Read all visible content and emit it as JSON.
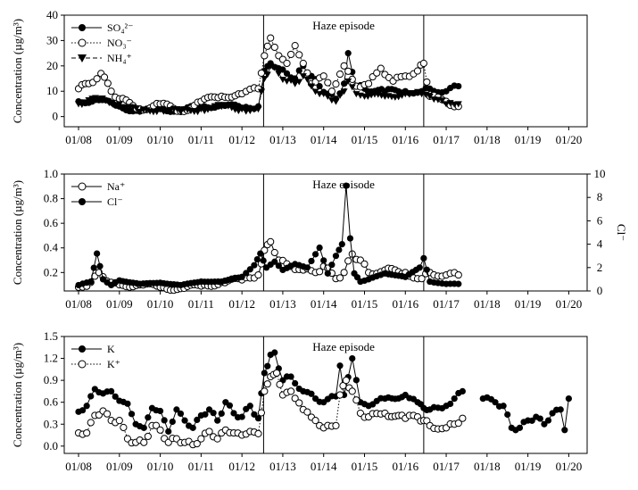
{
  "chart_data": [
    {
      "type": "line",
      "ylabel": "Concentration (µg/m³)",
      "ylim": [
        -4,
        40
      ],
      "yticks": [
        0,
        10,
        20,
        30,
        40
      ],
      "annotation": "Haze episode",
      "haze_bounds": [
        4.53,
        8.45
      ],
      "series": [
        {
          "name": "SO₄²⁻",
          "marker": "filled-circle",
          "line": "solid",
          "points": [
            [
              0.0,
              6
            ],
            [
              0.5,
              6.5
            ],
            [
              1.0,
              4
            ],
            [
              1.5,
              2
            ],
            [
              2.0,
              3
            ],
            [
              2.5,
              2.5
            ],
            [
              3.0,
              4
            ],
            [
              3.5,
              4.5
            ],
            [
              4.0,
              3.5
            ],
            [
              4.4,
              4
            ],
            [
              4.55,
              18
            ],
            [
              4.7,
              21
            ],
            [
              4.9,
              19
            ],
            [
              5.1,
              17
            ],
            [
              5.3,
              15
            ],
            [
              5.5,
              20
            ],
            [
              5.7,
              16
            ],
            [
              5.9,
              12
            ],
            [
              6.1,
              9
            ],
            [
              6.3,
              7
            ],
            [
              6.5,
              13
            ],
            [
              6.6,
              25
            ],
            [
              6.8,
              12
            ],
            [
              7.0,
              11
            ],
            [
              7.5,
              10
            ],
            [
              8.0,
              10
            ],
            [
              8.4,
              10
            ],
            [
              8.6,
              11
            ],
            [
              9.0,
              10
            ],
            [
              9.3,
              12
            ]
          ]
        },
        {
          "name": "NO₃⁻",
          "marker": "open-circle",
          "line": "dotted",
          "points": [
            [
              0.0,
              11
            ],
            [
              0.25,
              13
            ],
            [
              0.55,
              17
            ],
            [
              0.8,
              10
            ],
            [
              1.0,
              7
            ],
            [
              1.5,
              3
            ],
            [
              2.0,
              5
            ],
            [
              2.5,
              2
            ],
            [
              3.0,
              6
            ],
            [
              3.5,
              8
            ],
            [
              4.0,
              9
            ],
            [
              4.4,
              11
            ],
            [
              4.55,
              24
            ],
            [
              4.7,
              31
            ],
            [
              4.9,
              24
            ],
            [
              5.1,
              21
            ],
            [
              5.3,
              28
            ],
            [
              5.5,
              21
            ],
            [
              5.7,
              13
            ],
            [
              6.0,
              16
            ],
            [
              6.2,
              10
            ],
            [
              6.5,
              20
            ],
            [
              6.8,
              12
            ],
            [
              7.1,
              13
            ],
            [
              7.4,
              19
            ],
            [
              7.7,
              14
            ],
            [
              8.0,
              16
            ],
            [
              8.3,
              18
            ],
            [
              8.45,
              21
            ],
            [
              8.6,
              8
            ],
            [
              9.0,
              6
            ],
            [
              9.3,
              4
            ]
          ]
        },
        {
          "name": "NH₄⁺",
          "marker": "filled-triangle-down",
          "line": "dashed",
          "points": [
            [
              0.0,
              5
            ],
            [
              0.5,
              7
            ],
            [
              1.0,
              5
            ],
            [
              1.5,
              2
            ],
            [
              2.0,
              3
            ],
            [
              2.5,
              2
            ],
            [
              3.0,
              3
            ],
            [
              3.5,
              4
            ],
            [
              4.0,
              3
            ],
            [
              4.4,
              3
            ],
            [
              4.55,
              15
            ],
            [
              4.7,
              20
            ],
            [
              4.9,
              17
            ],
            [
              5.1,
              14
            ],
            [
              5.3,
              13
            ],
            [
              5.5,
              16
            ],
            [
              5.7,
              12
            ],
            [
              5.9,
              9
            ],
            [
              6.1,
              8
            ],
            [
              6.3,
              6
            ],
            [
              6.5,
              10
            ],
            [
              6.6,
              14
            ],
            [
              6.8,
              9
            ],
            [
              7.0,
              8
            ],
            [
              7.5,
              8
            ],
            [
              8.0,
              9
            ],
            [
              8.4,
              9
            ],
            [
              8.6,
              8
            ],
            [
              9.0,
              5
            ],
            [
              9.3,
              5
            ]
          ]
        }
      ]
    },
    {
      "type": "line",
      "ylabel": "Concentration (µg/m³)",
      "ylabel_right": "Cl⁻",
      "ylim": [
        0.05,
        1.0
      ],
      "yticks": [
        0.2,
        0.4,
        0.6,
        0.8,
        1.0
      ],
      "y2lim": [
        0,
        10
      ],
      "y2ticks": [
        0,
        2,
        4,
        6,
        8,
        10
      ],
      "annotation": "Haze episode",
      "haze_bounds": [
        4.53,
        8.45
      ],
      "series": [
        {
          "name": "Na⁺",
          "marker": "open-circle",
          "line": "solid",
          "axis": "left",
          "points": [
            [
              0.0,
              0.08
            ],
            [
              0.3,
              0.12
            ],
            [
              0.5,
              0.2
            ],
            [
              0.8,
              0.12
            ],
            [
              1.0,
              0.1
            ],
            [
              1.5,
              0.1
            ],
            [
              2.0,
              0.08
            ],
            [
              2.5,
              0.07
            ],
            [
              3.0,
              0.09
            ],
            [
              3.5,
              0.12
            ],
            [
              4.0,
              0.14
            ],
            [
              4.4,
              0.18
            ],
            [
              4.55,
              0.38
            ],
            [
              4.7,
              0.45
            ],
            [
              4.9,
              0.3
            ],
            [
              5.2,
              0.25
            ],
            [
              5.5,
              0.22
            ],
            [
              5.8,
              0.2
            ],
            [
              6.0,
              0.25
            ],
            [
              6.3,
              0.15
            ],
            [
              6.5,
              0.2
            ],
            [
              6.7,
              0.35
            ],
            [
              6.9,
              0.3
            ],
            [
              7.1,
              0.2
            ],
            [
              7.5,
              0.22
            ],
            [
              8.0,
              0.2
            ],
            [
              8.4,
              0.15
            ],
            [
              8.6,
              0.2
            ],
            [
              9.0,
              0.18
            ],
            [
              9.3,
              0.18
            ]
          ]
        },
        {
          "name": "Cl⁻",
          "marker": "filled-circle",
          "line": "solid",
          "axis": "right",
          "points": [
            [
              0.0,
              0.5
            ],
            [
              0.3,
              0.8
            ],
            [
              0.45,
              3.2
            ],
            [
              0.6,
              1
            ],
            [
              0.8,
              0.5
            ],
            [
              1.0,
              0.9
            ],
            [
              1.5,
              0.6
            ],
            [
              2.0,
              0.7
            ],
            [
              2.5,
              0.5
            ],
            [
              3.0,
              0.8
            ],
            [
              3.5,
              0.8
            ],
            [
              4.0,
              1.2
            ],
            [
              4.3,
              2.2
            ],
            [
              4.45,
              3.2
            ],
            [
              4.6,
              2
            ],
            [
              4.8,
              2.5
            ],
            [
              5.0,
              1.8
            ],
            [
              5.3,
              2.3
            ],
            [
              5.6,
              2
            ],
            [
              5.9,
              3.7
            ],
            [
              6.1,
              1.5
            ],
            [
              6.3,
              3
            ],
            [
              6.45,
              4
            ],
            [
              6.55,
              9
            ],
            [
              6.65,
              4.5
            ],
            [
              6.75,
              1.5
            ],
            [
              6.9,
              0.8
            ],
            [
              7.1,
              1
            ],
            [
              7.5,
              1.5
            ],
            [
              8.0,
              1.2
            ],
            [
              8.35,
              2
            ],
            [
              8.45,
              2.8
            ],
            [
              8.6,
              0.8
            ],
            [
              9.0,
              0.6
            ],
            [
              9.3,
              0.6
            ]
          ]
        }
      ]
    },
    {
      "type": "line",
      "ylabel": "Concentration (µg/m³)",
      "ylim": [
        -0.1,
        1.5
      ],
      "yticks": [
        0.0,
        0.3,
        0.6,
        0.9,
        1.2,
        1.5
      ],
      "annotation": "Haze episode",
      "haze_bounds": [
        4.53,
        8.45
      ],
      "series": [
        {
          "name": "K",
          "marker": "filled-circle",
          "line": "solid",
          "points": [
            [
              0.0,
              0.47
            ],
            [
              0.2,
              0.55
            ],
            [
              0.4,
              0.78
            ],
            [
              0.6,
              0.72
            ],
            [
              0.8,
              0.75
            ],
            [
              1.0,
              0.62
            ],
            [
              1.2,
              0.58
            ],
            [
              1.4,
              0.3
            ],
            [
              1.6,
              0.25
            ],
            [
              1.8,
              0.52
            ],
            [
              2.0,
              0.48
            ],
            [
              2.2,
              0.2
            ],
            [
              2.4,
              0.5
            ],
            [
              2.6,
              0.35
            ],
            [
              2.8,
              0.25
            ],
            [
              3.0,
              0.42
            ],
            [
              3.2,
              0.5
            ],
            [
              3.4,
              0.35
            ],
            [
              3.6,
              0.6
            ],
            [
              3.8,
              0.45
            ],
            [
              4.0,
              0.4
            ],
            [
              4.2,
              0.55
            ],
            [
              4.4,
              0.38
            ],
            [
              4.55,
              1.0
            ],
            [
              4.7,
              1.25
            ],
            [
              4.8,
              1.28
            ],
            [
              5.0,
              0.9
            ],
            [
              5.2,
              0.95
            ],
            [
              5.5,
              0.75
            ],
            [
              5.8,
              0.65
            ],
            [
              6.0,
              0.6
            ],
            [
              6.3,
              0.68
            ],
            [
              6.4,
              1.1
            ],
            [
              6.5,
              0.7
            ],
            [
              6.7,
              1.2
            ],
            [
              6.9,
              0.6
            ],
            [
              7.1,
              0.55
            ],
            [
              7.5,
              0.65
            ],
            [
              8.0,
              0.7
            ],
            [
              8.3,
              0.6
            ],
            [
              8.45,
              0.52
            ],
            [
              8.6,
              0.5
            ],
            [
              9.0,
              0.55
            ],
            [
              9.2,
              0.65
            ],
            [
              9.4,
              0.75
            ]
          ]
        },
        {
          "name": "K",
          "marker": "filled-circle",
          "line": "solid",
          "points": [
            [
              9.9,
              0.65
            ],
            [
              10.2,
              0.6
            ],
            [
              10.4,
              0.55
            ],
            [
              10.6,
              0.25
            ],
            [
              10.8,
              0.25
            ],
            [
              11.0,
              0.35
            ],
            [
              11.2,
              0.4
            ],
            [
              11.4,
              0.3
            ],
            [
              11.6,
              0.45
            ],
            [
              11.8,
              0.5
            ],
            [
              11.9,
              0.22
            ],
            [
              12.0,
              0.65
            ]
          ]
        },
        {
          "name": "K⁺",
          "marker": "open-circle",
          "line": "dotted",
          "points": [
            [
              0.0,
              0.18
            ],
            [
              0.2,
              0.18
            ],
            [
              0.4,
              0.42
            ],
            [
              0.6,
              0.48
            ],
            [
              0.8,
              0.35
            ],
            [
              1.0,
              0.35
            ],
            [
              1.2,
              0.1
            ],
            [
              1.4,
              0.05
            ],
            [
              1.6,
              0.05
            ],
            [
              1.8,
              0.28
            ],
            [
              2.0,
              0.22
            ],
            [
              2.2,
              0.05
            ],
            [
              2.4,
              0.1
            ],
            [
              2.6,
              0.05
            ],
            [
              2.8,
              0.02
            ],
            [
              3.0,
              0.1
            ],
            [
              3.2,
              0.2
            ],
            [
              3.4,
              0.1
            ],
            [
              3.6,
              0.22
            ],
            [
              3.8,
              0.18
            ],
            [
              4.0,
              0.15
            ],
            [
              4.2,
              0.2
            ],
            [
              4.4,
              0.17
            ],
            [
              4.55,
              0.75
            ],
            [
              4.7,
              0.95
            ],
            [
              4.85,
              1.0
            ],
            [
              5.0,
              0.7
            ],
            [
              5.2,
              0.75
            ],
            [
              5.5,
              0.5
            ],
            [
              5.8,
              0.35
            ],
            [
              6.0,
              0.25
            ],
            [
              6.3,
              0.28
            ],
            [
              6.4,
              0.7
            ],
            [
              6.55,
              0.9
            ],
            [
              6.7,
              0.75
            ],
            [
              6.9,
              0.45
            ],
            [
              7.1,
              0.4
            ],
            [
              7.5,
              0.45
            ],
            [
              8.0,
              0.38
            ],
            [
              8.3,
              0.4
            ],
            [
              8.45,
              0.35
            ],
            [
              8.6,
              0.28
            ],
            [
              9.0,
              0.25
            ],
            [
              9.2,
              0.3
            ],
            [
              9.4,
              0.38
            ]
          ]
        }
      ]
    }
  ],
  "xaxis": {
    "tick_labels": [
      "01/08",
      "01/09",
      "01/10",
      "01/11",
      "01/12",
      "01/13",
      "01/14",
      "01/15",
      "01/16",
      "01/17",
      "01/18",
      "01/19",
      "01/20"
    ],
    "range": [
      -0.35,
      12.45
    ]
  }
}
